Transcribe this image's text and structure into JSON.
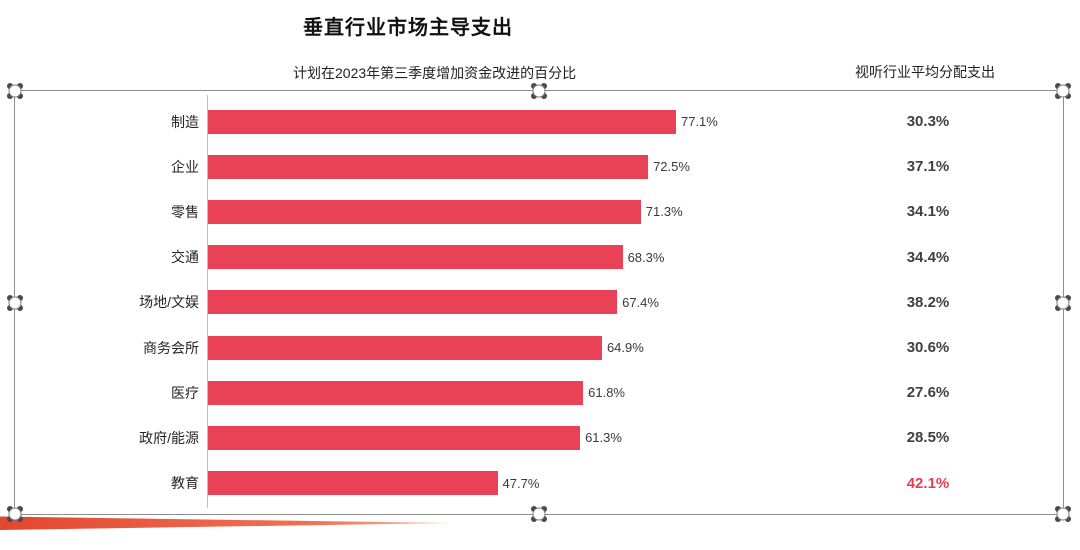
{
  "slide": {
    "title": "垂直行业市场主导支出",
    "left_header": "计划在2023年第三季度增加资金改进的百分比",
    "right_header": "视听行业平均分配支出"
  },
  "chart_data": {
    "type": "bar",
    "orientation": "horizontal",
    "title": "垂直行业市场主导支出",
    "categories": [
      "制造",
      "企业",
      "零售",
      "交通",
      "场地/文娱",
      "商务会所",
      "医疗",
      "政府/能源",
      "教育"
    ],
    "series": [
      {
        "name": "计划在2023年第三季度增加资金改进的百分比",
        "values": [
          77.1,
          72.5,
          71.3,
          68.3,
          67.4,
          64.9,
          61.8,
          61.3,
          47.7
        ],
        "labels": [
          "77.1%",
          "72.5%",
          "71.3%",
          "68.3%",
          "67.4%",
          "64.9%",
          "61.8%",
          "61.3%",
          "47.7%"
        ],
        "unit": "%"
      },
      {
        "name": "视听行业平均分配支出",
        "values": [
          30.3,
          37.1,
          34.1,
          34.4,
          38.2,
          30.6,
          27.6,
          28.5,
          42.1
        ],
        "labels": [
          "30.3%",
          "37.1%",
          "34.1%",
          "34.4%",
          "38.2%",
          "30.6%",
          "27.6%",
          "28.5%",
          "42.1%"
        ],
        "highlight_index": 8,
        "unit": "%"
      }
    ],
    "value_labels": true,
    "legend": "none",
    "grid": false,
    "colors": {
      "bar": "#e94256",
      "value_text": "#3a3a3a",
      "highlight_text": "#ed3b4e",
      "axis": "#c2c2c2"
    }
  },
  "decor": {
    "swoosh_start": "#e2472f",
    "swoosh_mid": "#ef7257",
    "swoosh_end": "#f9b7a2"
  }
}
